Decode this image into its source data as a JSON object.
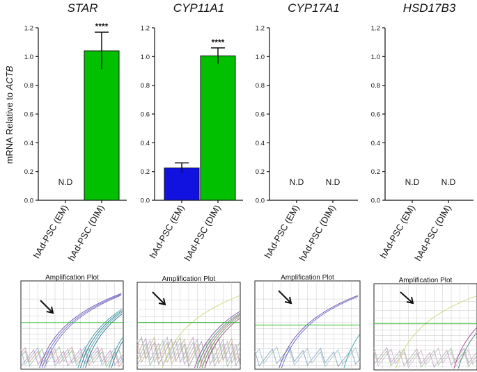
{
  "figure": {
    "ylabel_prefix": "mRNA Relative to ",
    "ylabel_gene": "ACTB",
    "colors": {
      "EM": "#1212e0",
      "DIM": "#00c000",
      "threshold": "#22bb22"
    }
  },
  "chart_data": [
    {
      "type": "bar",
      "title": "STAR",
      "categories": [
        "hAd-PSC (EM)",
        "hAd-PSC (DIM)"
      ],
      "values": [
        0,
        1.04
      ],
      "errors": [
        0,
        0.13
      ],
      "annotations": [
        "N.D",
        "****"
      ],
      "yticks": [
        "0.0",
        "0.2",
        "0.4",
        "0.6",
        "0.8",
        "1.0",
        "1.2"
      ],
      "ylim": [
        0,
        1.2
      ]
    },
    {
      "type": "bar",
      "title": "CYP11A1",
      "categories": [
        "hAd-PSC (EM)",
        "hAd-PSC (DIM)"
      ],
      "values": [
        0.225,
        1.005
      ],
      "errors": [
        0.035,
        0.055
      ],
      "annotations": [
        "",
        "****"
      ],
      "yticks": [
        "0.0",
        "0.2",
        "0.4",
        "0.6",
        "0.8",
        "1.0",
        "1.2"
      ],
      "ylim": [
        0,
        1.2
      ]
    },
    {
      "type": "bar",
      "title": "CYP17A1",
      "categories": [
        "hAd-PSC (EM)",
        "hAd-PSC (DIM)"
      ],
      "values": [
        0,
        0
      ],
      "errors": [
        0,
        0
      ],
      "annotations": [
        "N.D",
        "N.D"
      ],
      "yticks": [
        "0.0",
        "0.2",
        "0.4",
        "0.6",
        "0.8",
        "1.0",
        "1.2"
      ],
      "ylim": [
        0,
        1.2
      ]
    },
    {
      "type": "bar",
      "title": "HSD17B3",
      "categories": [
        "hAd-PSC (EM)",
        "hAd-PSC (DIM)"
      ],
      "values": [
        0,
        0
      ],
      "errors": [
        0,
        0
      ],
      "annotations": [
        "N.D",
        "N.D"
      ],
      "yticks": [
        "0.0",
        "0.2",
        "0.4",
        "0.6",
        "0.8",
        "1.0",
        "1.2"
      ],
      "ylim": [
        0,
        1.2
      ]
    }
  ],
  "amplification_plots": [
    {
      "title": "Amplification Plot"
    },
    {
      "title": "Amplification Plot"
    },
    {
      "title": "Amplification Plot"
    },
    {
      "title": "Amplification Plot"
    }
  ]
}
